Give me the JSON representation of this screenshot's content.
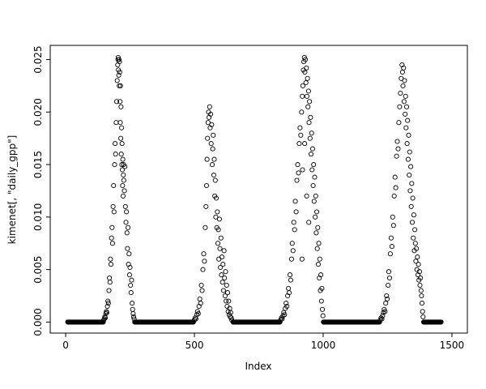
{
  "chart_data": {
    "type": "scatter",
    "title": "",
    "xlabel": "Index",
    "ylabel": "kimenet[, \"daily_gpp\"]",
    "xlim": [
      0,
      1500
    ],
    "ylim": [
      0.0,
      0.025
    ],
    "grid": false,
    "legend": "none",
    "marker": "open-circle",
    "marker_color": "#000000",
    "x_ticks": [
      0,
      500,
      1000,
      1500
    ],
    "x_tick_labels": [
      "0",
      "500",
      "1000",
      "1500"
    ],
    "y_ticks": [
      0.0,
      0.005,
      0.01,
      0.015,
      0.02,
      0.025
    ],
    "y_tick_labels": [
      "0.000",
      "0.005",
      "0.010",
      "0.015",
      "0.020",
      "0.025"
    ],
    "zero_runs": [
      [
        8,
        146
      ],
      [
        268,
        497
      ],
      [
        650,
        832
      ],
      [
        1001,
        1220
      ],
      [
        1390,
        1458
      ]
    ],
    "zero_run_step": 2,
    "points": [
      [
        148,
        0.0002
      ],
      [
        150,
        0.0003
      ],
      [
        152,
        0.0005
      ],
      [
        154,
        0.0004
      ],
      [
        156,
        0.0008
      ],
      [
        158,
        0.001
      ],
      [
        160,
        0.0009
      ],
      [
        162,
        0.0015
      ],
      [
        164,
        0.002
      ],
      [
        166,
        0.0018
      ],
      [
        168,
        0.003
      ],
      [
        170,
        0.0042
      ],
      [
        172,
        0.0038
      ],
      [
        174,
        0.006
      ],
      [
        176,
        0.0055
      ],
      [
        178,
        0.008
      ],
      [
        180,
        0.009
      ],
      [
        182,
        0.0075
      ],
      [
        184,
        0.011
      ],
      [
        186,
        0.013
      ],
      [
        188,
        0.0105
      ],
      [
        190,
        0.015
      ],
      [
        192,
        0.017
      ],
      [
        194,
        0.016
      ],
      [
        196,
        0.019
      ],
      [
        198,
        0.021
      ],
      [
        200,
        0.023
      ],
      [
        202,
        0.0245
      ],
      [
        203,
        0.025
      ],
      [
        204,
        0.0252
      ],
      [
        205,
        0.024
      ],
      [
        206,
        0.0235
      ],
      [
        207,
        0.025
      ],
      [
        208,
        0.0225
      ],
      [
        209,
        0.0248
      ],
      [
        210,
        0.0238
      ],
      [
        211,
        0.021
      ],
      [
        212,
        0.019
      ],
      [
        213,
        0.0225
      ],
      [
        214,
        0.0175
      ],
      [
        215,
        0.0205
      ],
      [
        216,
        0.016
      ],
      [
        217,
        0.0185
      ],
      [
        218,
        0.015
      ],
      [
        219,
        0.017
      ],
      [
        220,
        0.0145
      ],
      [
        221,
        0.013
      ],
      [
        222,
        0.0155
      ],
      [
        223,
        0.012
      ],
      [
        224,
        0.014
      ],
      [
        225,
        0.015
      ],
      [
        226,
        0.0135
      ],
      [
        228,
        0.0125
      ],
      [
        230,
        0.0148
      ],
      [
        232,
        0.011
      ],
      [
        234,
        0.0095
      ],
      [
        236,
        0.0105
      ],
      [
        238,
        0.0085
      ],
      [
        240,
        0.007
      ],
      [
        242,
        0.009
      ],
      [
        244,
        0.0055
      ],
      [
        246,
        0.0065
      ],
      [
        248,
        0.0045
      ],
      [
        250,
        0.0052
      ],
      [
        252,
        0.0035
      ],
      [
        254,
        0.0028
      ],
      [
        256,
        0.004
      ],
      [
        258,
        0.0018
      ],
      [
        260,
        0.0012
      ],
      [
        262,
        0.0008
      ],
      [
        264,
        0.0005
      ],
      [
        266,
        0.0003
      ],
      [
        500,
        0.0002
      ],
      [
        503,
        0.0004
      ],
      [
        506,
        0.0003
      ],
      [
        509,
        0.0007
      ],
      [
        512,
        0.001
      ],
      [
        515,
        0.0008
      ],
      [
        518,
        0.0015
      ],
      [
        521,
        0.0022
      ],
      [
        524,
        0.0018
      ],
      [
        527,
        0.0035
      ],
      [
        530,
        0.003
      ],
      [
        533,
        0.005
      ],
      [
        536,
        0.0065
      ],
      [
        539,
        0.0058
      ],
      [
        542,
        0.009
      ],
      [
        545,
        0.011
      ],
      [
        547,
        0.013
      ],
      [
        549,
        0.0155
      ],
      [
        551,
        0.0175
      ],
      [
        553,
        0.019
      ],
      [
        555,
        0.02
      ],
      [
        557,
        0.0195
      ],
      [
        559,
        0.0205
      ],
      [
        561,
        0.0185
      ],
      [
        563,
        0.0198
      ],
      [
        565,
        0.017
      ],
      [
        567,
        0.0188
      ],
      [
        569,
        0.015
      ],
      [
        571,
        0.0165
      ],
      [
        573,
        0.0178
      ],
      [
        575,
        0.014
      ],
      [
        577,
        0.0155
      ],
      [
        579,
        0.012
      ],
      [
        581,
        0.0135
      ],
      [
        583,
        0.01
      ],
      [
        585,
        0.0118
      ],
      [
        587,
        0.009
      ],
      [
        589,
        0.0105
      ],
      [
        591,
        0.0075
      ],
      [
        593,
        0.0088
      ],
      [
        595,
        0.006
      ],
      [
        597,
        0.0098
      ],
      [
        599,
        0.007
      ],
      [
        601,
        0.0052
      ],
      [
        603,
        0.008
      ],
      [
        605,
        0.0045
      ],
      [
        607,
        0.0062
      ],
      [
        609,
        0.0038
      ],
      [
        611,
        0.0055
      ],
      [
        613,
        0.003
      ],
      [
        615,
        0.0068
      ],
      [
        617,
        0.0042
      ],
      [
        619,
        0.0025
      ],
      [
        621,
        0.0048
      ],
      [
        623,
        0.002
      ],
      [
        625,
        0.0035
      ],
      [
        627,
        0.0015
      ],
      [
        629,
        0.0028
      ],
      [
        631,
        0.001
      ],
      [
        633,
        0.002
      ],
      [
        635,
        0.0007
      ],
      [
        637,
        0.0013
      ],
      [
        639,
        0.0005
      ],
      [
        641,
        0.0009
      ],
      [
        643,
        0.0004
      ],
      [
        645,
        0.0002
      ],
      [
        835,
        0.0002
      ],
      [
        838,
        0.0004
      ],
      [
        841,
        0.0003
      ],
      [
        844,
        0.0006
      ],
      [
        847,
        0.0009
      ],
      [
        850,
        0.0007
      ],
      [
        853,
        0.0013
      ],
      [
        856,
        0.0018
      ],
      [
        859,
        0.0015
      ],
      [
        862,
        0.0025
      ],
      [
        865,
        0.0032
      ],
      [
        868,
        0.0028
      ],
      [
        871,
        0.0045
      ],
      [
        874,
        0.004
      ],
      [
        877,
        0.006
      ],
      [
        880,
        0.0075
      ],
      [
        883,
        0.0068
      ],
      [
        886,
        0.0095
      ],
      [
        889,
        0.0088
      ],
      [
        892,
        0.0115
      ],
      [
        895,
        0.0105
      ],
      [
        898,
        0.0135
      ],
      [
        901,
        0.015
      ],
      [
        904,
        0.0142
      ],
      [
        907,
        0.017
      ],
      [
        910,
        0.0185
      ],
      [
        913,
        0.0178
      ],
      [
        916,
        0.02
      ],
      [
        918,
        0.006
      ],
      [
        919,
        0.0215
      ],
      [
        920,
        0.0145
      ],
      [
        921,
        0.0225
      ],
      [
        923,
        0.024
      ],
      [
        925,
        0.0248
      ],
      [
        927,
        0.0252
      ],
      [
        928,
        0.017
      ],
      [
        929,
        0.0238
      ],
      [
        931,
        0.025
      ],
      [
        933,
        0.0228
      ],
      [
        935,
        0.0242
      ],
      [
        936,
        0.012
      ],
      [
        937,
        0.0215
      ],
      [
        939,
        0.0232
      ],
      [
        941,
        0.0205
      ],
      [
        943,
        0.022
      ],
      [
        944,
        0.0095
      ],
      [
        945,
        0.019
      ],
      [
        947,
        0.021
      ],
      [
        949,
        0.0175
      ],
      [
        951,
        0.0195
      ],
      [
        953,
        0.016
      ],
      [
        955,
        0.018
      ],
      [
        957,
        0.0145
      ],
      [
        959,
        0.0165
      ],
      [
        961,
        0.013
      ],
      [
        963,
        0.015
      ],
      [
        965,
        0.0115
      ],
      [
        967,
        0.0138
      ],
      [
        969,
        0.01
      ],
      [
        971,
        0.012
      ],
      [
        973,
        0.0085
      ],
      [
        975,
        0.0105
      ],
      [
        977,
        0.007
      ],
      [
        979,
        0.009
      ],
      [
        981,
        0.0055
      ],
      [
        983,
        0.0075
      ],
      [
        985,
        0.0042
      ],
      [
        987,
        0.006
      ],
      [
        989,
        0.003
      ],
      [
        991,
        0.0045
      ],
      [
        993,
        0.002
      ],
      [
        995,
        0.0032
      ],
      [
        997,
        0.0012
      ],
      [
        999,
        0.0006
      ],
      [
        1222,
        0.0002
      ],
      [
        1225,
        0.0004
      ],
      [
        1228,
        0.0003
      ],
      [
        1231,
        0.0006
      ],
      [
        1234,
        0.0009
      ],
      [
        1237,
        0.0012
      ],
      [
        1240,
        0.001
      ],
      [
        1243,
        0.0018
      ],
      [
        1246,
        0.0025
      ],
      [
        1249,
        0.0022
      ],
      [
        1252,
        0.0035
      ],
      [
        1255,
        0.0048
      ],
      [
        1258,
        0.0042
      ],
      [
        1261,
        0.0065
      ],
      [
        1264,
        0.008
      ],
      [
        1267,
        0.0072
      ],
      [
        1270,
        0.01
      ],
      [
        1273,
        0.0092
      ],
      [
        1276,
        0.012
      ],
      [
        1279,
        0.0138
      ],
      [
        1282,
        0.0128
      ],
      [
        1285,
        0.0158
      ],
      [
        1288,
        0.0172
      ],
      [
        1291,
        0.0165
      ],
      [
        1294,
        0.019
      ],
      [
        1297,
        0.0205
      ],
      [
        1300,
        0.0218
      ],
      [
        1303,
        0.0232
      ],
      [
        1306,
        0.0245
      ],
      [
        1308,
        0.0238
      ],
      [
        1310,
        0.0225
      ],
      [
        1312,
        0.0242
      ],
      [
        1314,
        0.021
      ],
      [
        1316,
        0.023
      ],
      [
        1318,
        0.0198
      ],
      [
        1320,
        0.0215
      ],
      [
        1322,
        0.0185
      ],
      [
        1324,
        0.0205
      ],
      [
        1326,
        0.017
      ],
      [
        1328,
        0.0192
      ],
      [
        1330,
        0.0155
      ],
      [
        1332,
        0.0178
      ],
      [
        1334,
        0.014
      ],
      [
        1336,
        0.0162
      ],
      [
        1338,
        0.0125
      ],
      [
        1340,
        0.0148
      ],
      [
        1342,
        0.011
      ],
      [
        1344,
        0.0132
      ],
      [
        1346,
        0.0095
      ],
      [
        1348,
        0.0118
      ],
      [
        1350,
        0.008
      ],
      [
        1352,
        0.0102
      ],
      [
        1354,
        0.0068
      ],
      [
        1356,
        0.0088
      ],
      [
        1358,
        0.0075
      ],
      [
        1360,
        0.0058
      ],
      [
        1362,
        0.007
      ],
      [
        1364,
        0.005
      ],
      [
        1366,
        0.0062
      ],
      [
        1368,
        0.0045
      ],
      [
        1370,
        0.0055
      ],
      [
        1372,
        0.004
      ],
      [
        1374,
        0.0048
      ],
      [
        1376,
        0.0035
      ],
      [
        1378,
        0.0042
      ],
      [
        1380,
        0.003
      ],
      [
        1382,
        0.0025
      ],
      [
        1384,
        0.0018
      ],
      [
        1386,
        0.001
      ],
      [
        1388,
        0.0005
      ]
    ]
  }
}
